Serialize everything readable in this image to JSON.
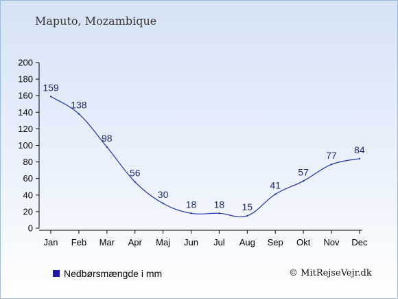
{
  "title": "Maputo, Mozambique",
  "legend_label": "Nedbørsmængde i mm",
  "copyright": "© MitRejseVejr.dk",
  "colors": {
    "line": "#1f2fa8",
    "legend_swatch": "#1a1aa6"
  },
  "chart_data": {
    "type": "line",
    "categories": [
      "Jan",
      "Feb",
      "Mar",
      "Apr",
      "Maj",
      "Jun",
      "Jul",
      "Aug",
      "Sep",
      "Okt",
      "Nov",
      "Dec"
    ],
    "series": [
      {
        "name": "Nedbørsmængde i mm",
        "values": [
          159,
          138,
          98,
          56,
          30,
          18,
          18,
          15,
          41,
          57,
          77,
          84
        ]
      }
    ],
    "title": "Maputo, Mozambique",
    "ylim": [
      0,
      200
    ],
    "yticks": [
      0,
      20,
      40,
      60,
      80,
      100,
      120,
      140,
      160,
      180,
      200
    ],
    "grid": false,
    "legend": "bottom-left"
  }
}
